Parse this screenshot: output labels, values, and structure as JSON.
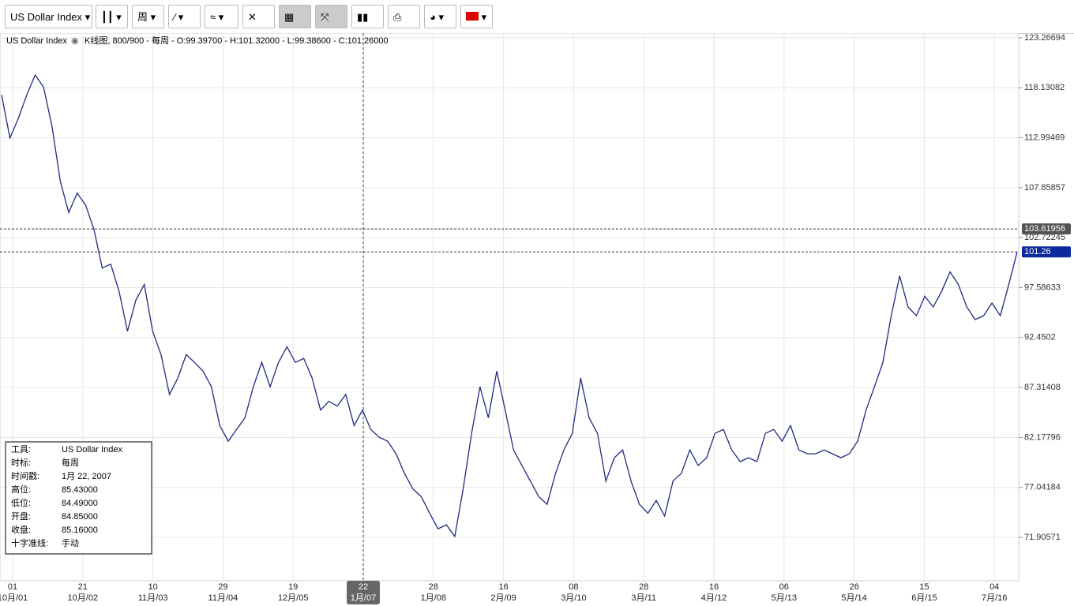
{
  "toolbar": {
    "instrument": "US Dollar Index",
    "period": "周"
  },
  "chart_data": {
    "type": "line",
    "title": "US Dollar Index",
    "subtitle": "K线图, 800/900 - 每周 - O:99.39700 - H:101.32000 - L:99.38600 - C:101.26000",
    "x_labels": [
      {
        "day": "01",
        "month": "10月/01"
      },
      {
        "day": "21",
        "month": "10月/02"
      },
      {
        "day": "10",
        "month": "11月/03"
      },
      {
        "day": "29",
        "month": "11月/04"
      },
      {
        "day": "19",
        "month": "12月/05"
      },
      {
        "day": "22",
        "month": "1月/07"
      },
      {
        "day": "28",
        "month": "1月/08"
      },
      {
        "day": "16",
        "month": "2月/09"
      },
      {
        "day": "08",
        "month": "3月/10"
      },
      {
        "day": "28",
        "month": "3月/11"
      },
      {
        "day": "16",
        "month": "4月/12"
      },
      {
        "day": "06",
        "month": "5月/13"
      },
      {
        "day": "26",
        "month": "5月/14"
      },
      {
        "day": "15",
        "month": "6月/15"
      },
      {
        "day": "04",
        "month": "7月/16"
      }
    ],
    "ylim": [
      67.45,
      123.75
    ],
    "yticks": [
      71.90571,
      77.04184,
      82.17796,
      87.31408,
      92.4502,
      97.58633,
      102.72245,
      107.85857,
      112.99469,
      118.13082,
      123.26694
    ],
    "grid": true,
    "series": [
      {
        "name": "US Dollar Index",
        "color": "#1f2a80",
        "values": [
          117.4,
          112.97,
          115.0,
          117.4,
          119.45,
          118.2,
          114.2,
          108.5,
          105.3,
          107.3,
          106.1,
          103.6,
          99.6,
          100.0,
          97.2,
          93.1,
          96.3,
          97.9,
          93.1,
          90.7,
          86.6,
          88.3,
          90.7,
          89.9,
          89.0,
          87.4,
          83.4,
          81.8,
          83.0,
          84.2,
          87.4,
          89.9,
          87.4,
          89.9,
          91.5,
          89.9,
          90.3,
          88.3,
          85.0,
          85.9,
          85.4,
          86.6,
          83.4,
          85.0,
          83.0,
          82.2,
          81.8,
          80.5,
          78.5,
          76.9,
          76.1,
          74.4,
          72.8,
          73.2,
          72.0,
          76.9,
          82.6,
          87.4,
          84.2,
          89.0,
          85.0,
          80.9,
          79.3,
          77.7,
          76.1,
          75.3,
          78.5,
          80.9,
          82.6,
          88.3,
          84.2,
          82.6,
          77.7,
          80.1,
          80.9,
          77.7,
          75.3,
          74.4,
          75.7,
          74.1,
          77.7,
          78.5,
          80.9,
          79.3,
          80.1,
          82.6,
          83.0,
          80.9,
          79.7,
          80.1,
          79.7,
          82.6,
          83.0,
          81.8,
          83.4,
          80.9,
          80.5,
          80.5,
          80.9,
          80.5,
          80.1,
          80.5,
          81.8,
          85.0,
          87.4,
          89.9,
          94.7,
          98.8,
          95.6,
          94.7,
          96.7,
          95.6,
          97.2,
          99.2,
          97.9,
          95.6,
          94.3,
          94.7,
          96.0,
          94.7,
          97.9,
          101.26
        ]
      }
    ],
    "price_markers": [
      103.61956,
      101.26
    ],
    "info_box": {
      "rows": [
        [
          "工具:",
          "US Dollar Index"
        ],
        [
          "时标:",
          "每周"
        ],
        [
          "时间戳:",
          "1月 22, 2007"
        ],
        [
          "高位:",
          "85.43000"
        ],
        [
          "低位:",
          "84.49000"
        ],
        [
          "开盘:",
          "84.85000"
        ],
        [
          "收盘:",
          "85.16000"
        ],
        [
          "十字准线:",
          "手动"
        ]
      ]
    }
  }
}
